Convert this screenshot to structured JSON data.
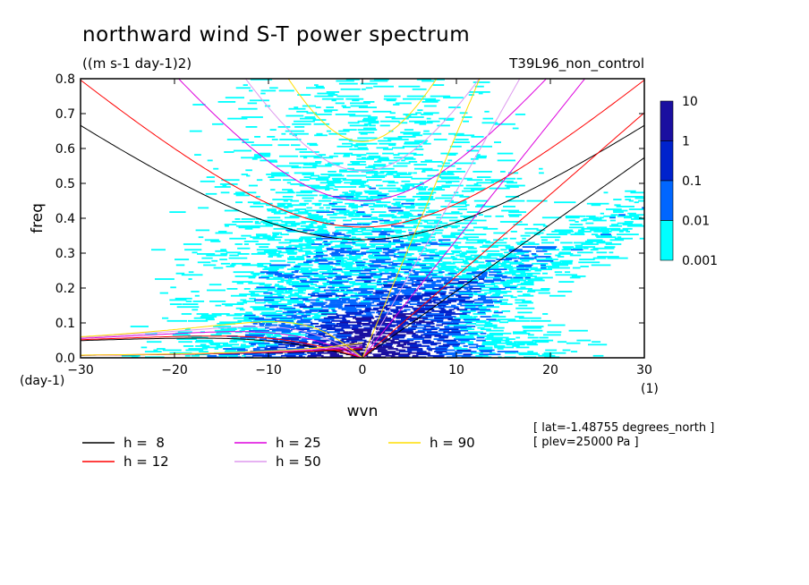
{
  "chart_data": {
    "type": "heatmap",
    "title": "northward wind S-T power spectrum",
    "units": "((m s-1 day-1)2)",
    "run_name": "T39L96_non_control",
    "xlabel": "wvn",
    "ylabel": "freq",
    "x_unit": "(1)",
    "y_unit": "(day-1)",
    "xlim": [
      -30,
      30
    ],
    "ylim": [
      0,
      0.8
    ],
    "x_ticks": [
      "−30",
      "−20",
      "−10",
      "0",
      "10",
      "20",
      "30"
    ],
    "x_tick_values": [
      -30,
      -20,
      -10,
      0,
      10,
      20,
      30
    ],
    "y_ticks": [
      "0.0",
      "0.1",
      "0.2",
      "0.3",
      "0.4",
      "0.5",
      "0.6",
      "0.7",
      "0.8"
    ],
    "y_tick_values": [
      0,
      0.1,
      0.2,
      0.3,
      0.4,
      0.5,
      0.6,
      0.7,
      0.8
    ],
    "colorbar": {
      "labels": [
        "10",
        "1",
        "0.1",
        "0.01",
        "0.001"
      ],
      "levels": [
        0.001,
        0.01,
        0.1,
        1,
        10
      ],
      "colors": [
        "#00ffff",
        "#0066ff",
        "#0022cc",
        "#1a0fa0"
      ]
    },
    "dispersion_curves": [
      {
        "name": "h =  8",
        "h": 8,
        "color": "#000000"
      },
      {
        "name": "h = 12",
        "h": 12,
        "color": "#ff0000"
      },
      {
        "name": "h = 25",
        "h": 25,
        "color": "#dd00dd"
      },
      {
        "name": "h = 50",
        "h": 50,
        "color": "#dd99ee"
      },
      {
        "name": "h = 90",
        "h": 90,
        "color": "#ffdd00"
      }
    ],
    "info_lines": [
      "[ lat=-1.48755 degrees_north ]",
      "[ plev=25000 Pa ]"
    ]
  }
}
